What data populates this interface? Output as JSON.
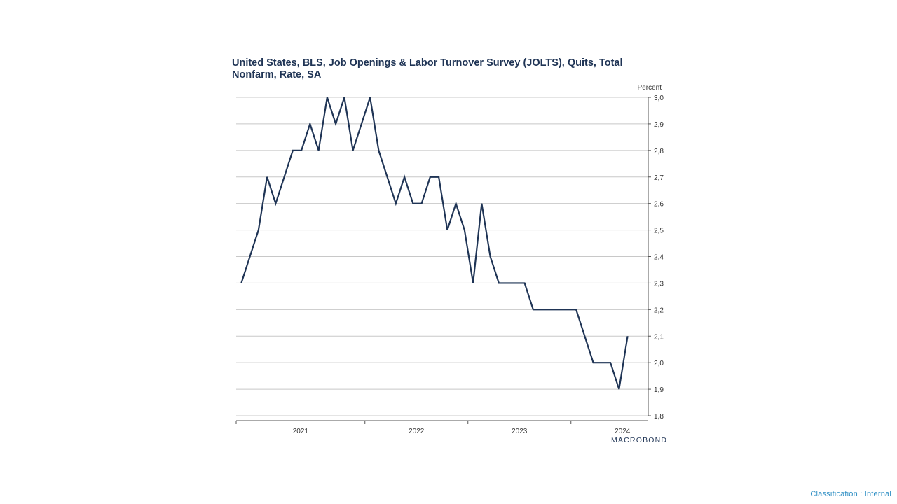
{
  "chart_data": {
    "type": "line",
    "title": "United States, BLS, Job Openings & Labor Turnover Survey (JOLTS), Quits, Total Nonfarm, Rate, SA",
    "ylabel": "Percent",
    "xlabel": "",
    "ylim": [
      1.8,
      3.0
    ],
    "yticks": [
      3.0,
      2.9,
      2.8,
      2.7,
      2.6,
      2.5,
      2.4,
      2.3,
      2.2,
      2.1,
      2.0,
      1.9,
      1.8
    ],
    "ytick_labels": [
      "3,0",
      "2,9",
      "2,8",
      "2,7",
      "2,6",
      "2,5",
      "2,4",
      "2,3",
      "2,2",
      "2,1",
      "2,0",
      "1,9",
      "1,8"
    ],
    "x_start": "2020-10",
    "xlim_months": [
      0,
      48
    ],
    "year_labels": [
      "2021",
      "2022",
      "2023",
      "2024"
    ],
    "grid": true,
    "line_color": "#1f3455",
    "series": [
      {
        "name": "Quits, Total Nonfarm, Rate, SA",
        "values": [
          2.3,
          2.4,
          2.5,
          2.7,
          2.6,
          2.7,
          2.8,
          2.8,
          2.9,
          2.8,
          3.0,
          2.9,
          3.0,
          2.8,
          2.9,
          3.0,
          2.8,
          2.7,
          2.6,
          2.7,
          2.6,
          2.6,
          2.7,
          2.7,
          2.5,
          2.6,
          2.5,
          2.3,
          2.6,
          2.4,
          2.3,
          2.3,
          2.3,
          2.3,
          2.2,
          2.2,
          2.2,
          2.2,
          2.2,
          2.2,
          2.1,
          2.0,
          2.0,
          2.0,
          1.9,
          2.1
        ]
      }
    ]
  },
  "branding": {
    "logo": "MACROBOND"
  },
  "footer": {
    "classification": "Classification : Internal"
  }
}
